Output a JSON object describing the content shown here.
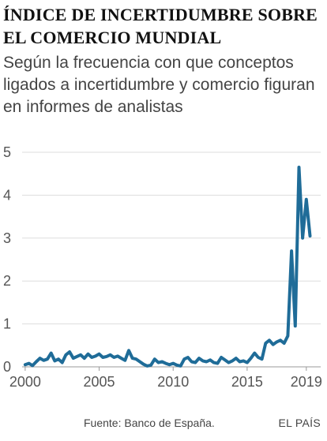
{
  "title": "Índice de incertidumbre sobre el comercio mundial",
  "subtitle": "Según la frecuencia con que conceptos ligados a incertidumbre y comercio figuran en informes de analistas",
  "source": "Fuente: Banco de España.",
  "brand": "EL PAÍS",
  "colors": {
    "line": "#1f6c98",
    "gridline": "#dddddd",
    "axis": "#999999"
  },
  "chart_data": {
    "type": "line",
    "title": "Índice de incertidumbre sobre el comercio mundial",
    "xlim": [
      1999.9,
      2019.65
    ],
    "ylim": [
      0,
      5
    ],
    "y_ticks": [
      0,
      1,
      2,
      3,
      4,
      5
    ],
    "x_ticks": [
      2000,
      2005,
      2010,
      2015,
      2019
    ],
    "grid": "horizontal",
    "legend": "none",
    "series": [
      {
        "x": [
          2000.0,
          2000.25,
          2000.5,
          2000.75,
          2001.0,
          2001.25,
          2001.5,
          2001.75,
          2002.0,
          2002.25,
          2002.5,
          2002.75,
          2003.0,
          2003.25,
          2003.5,
          2003.75,
          2004.0,
          2004.25,
          2004.5,
          2004.75,
          2005.0,
          2005.25,
          2005.5,
          2005.75,
          2006.0,
          2006.25,
          2006.5,
          2006.75,
          2007.0,
          2007.25,
          2007.5,
          2007.75,
          2008.0,
          2008.25,
          2008.5,
          2008.75,
          2009.0,
          2009.25,
          2009.5,
          2009.75,
          2010.0,
          2010.25,
          2010.5,
          2010.75,
          2011.0,
          2011.25,
          2011.5,
          2011.75,
          2012.0,
          2012.25,
          2012.5,
          2012.75,
          2013.0,
          2013.25,
          2013.5,
          2013.75,
          2014.0,
          2014.25,
          2014.5,
          2014.75,
          2015.0,
          2015.25,
          2015.5,
          2015.75,
          2016.0,
          2016.25,
          2016.5,
          2016.75,
          2017.0,
          2017.25,
          2017.5,
          2017.75,
          2018.0,
          2018.25,
          2018.5,
          2018.75,
          2019.0,
          2019.25
        ],
        "y": [
          0.05,
          0.08,
          0.03,
          0.12,
          0.2,
          0.15,
          0.18,
          0.32,
          0.14,
          0.18,
          0.1,
          0.28,
          0.35,
          0.2,
          0.24,
          0.28,
          0.2,
          0.3,
          0.22,
          0.25,
          0.3,
          0.22,
          0.24,
          0.28,
          0.22,
          0.25,
          0.2,
          0.15,
          0.38,
          0.2,
          0.18,
          0.12,
          0.06,
          0.02,
          0.04,
          0.18,
          0.1,
          0.12,
          0.08,
          0.05,
          0.08,
          0.04,
          0.02,
          0.18,
          0.22,
          0.12,
          0.1,
          0.2,
          0.14,
          0.12,
          0.16,
          0.1,
          0.08,
          0.22,
          0.16,
          0.1,
          0.14,
          0.2,
          0.12,
          0.14,
          0.1,
          0.2,
          0.32,
          0.22,
          0.18,
          0.55,
          0.62,
          0.52,
          0.58,
          0.62,
          0.55,
          0.72,
          2.7,
          0.95,
          4.65,
          3.0,
          3.9,
          3.05
        ]
      }
    ]
  }
}
